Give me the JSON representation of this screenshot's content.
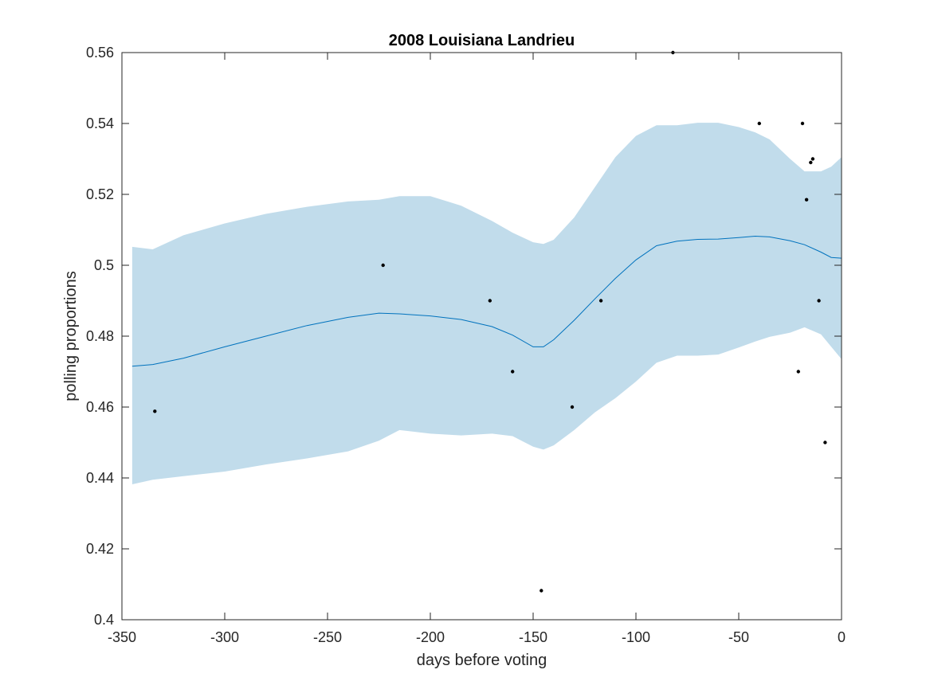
{
  "chart_data": {
    "type": "line",
    "title": "2008 Louisiana Landrieu",
    "xlabel": "days before voting",
    "ylabel": "polling proportions",
    "xlim": [
      -350,
      0
    ],
    "ylim": [
      0.4,
      0.56
    ],
    "xticks": [
      -350,
      -300,
      -250,
      -200,
      -150,
      -100,
      -50,
      0
    ],
    "xtick_labels": [
      "-350",
      "-300",
      "-250",
      "-200",
      "-150",
      "-100",
      "-50",
      "0"
    ],
    "yticks": [
      0.4,
      0.42,
      0.44,
      0.46,
      0.48,
      0.5,
      0.52,
      0.54,
      0.56
    ],
    "ytick_labels": [
      "0.4",
      "0.42",
      "0.44",
      "0.46",
      "0.48",
      "0.5",
      "0.52",
      "0.54",
      "0.56"
    ],
    "grid": false,
    "colors": {
      "mean_line": "#0072BD",
      "band_fill": "#C1DCEB",
      "points": "#000000",
      "axes": "#262626"
    },
    "mean": {
      "x": [
        -345,
        -335,
        -320,
        -300,
        -280,
        -260,
        -240,
        -225,
        -215,
        -200,
        -185,
        -170,
        -160,
        -150,
        -145,
        -140,
        -130,
        -120,
        -110,
        -100,
        -90,
        -80,
        -70,
        -60,
        -50,
        -42,
        -35,
        -25,
        -18,
        -10,
        -5,
        0
      ],
      "y": [
        0.4715,
        0.472,
        0.4738,
        0.477,
        0.48,
        0.483,
        0.4853,
        0.4865,
        0.4863,
        0.4857,
        0.4847,
        0.4827,
        0.4803,
        0.477,
        0.477,
        0.479,
        0.4845,
        0.4905,
        0.4963,
        0.5015,
        0.5055,
        0.5068,
        0.5073,
        0.5074,
        0.5078,
        0.5082,
        0.508,
        0.5069,
        0.5058,
        0.5037,
        0.5022,
        0.502
      ]
    },
    "band": {
      "x": [
        -345,
        -335,
        -320,
        -300,
        -280,
        -260,
        -240,
        -225,
        -215,
        -200,
        -185,
        -170,
        -160,
        -150,
        -145,
        -140,
        -130,
        -120,
        -110,
        -100,
        -90,
        -80,
        -70,
        -60,
        -50,
        -42,
        -35,
        -25,
        -18,
        -10,
        -5,
        0
      ],
      "upper": [
        0.5052,
        0.5045,
        0.5085,
        0.5118,
        0.5145,
        0.5165,
        0.518,
        0.5185,
        0.5195,
        0.5195,
        0.5168,
        0.5125,
        0.5092,
        0.5065,
        0.506,
        0.5072,
        0.5135,
        0.522,
        0.5305,
        0.5365,
        0.5395,
        0.5395,
        0.5402,
        0.5402,
        0.539,
        0.5375,
        0.5355,
        0.53,
        0.5265,
        0.5265,
        0.5278,
        0.5305
      ],
      "lower": [
        0.4382,
        0.4395,
        0.4405,
        0.4418,
        0.4438,
        0.4455,
        0.4475,
        0.4505,
        0.4535,
        0.4525,
        0.452,
        0.4525,
        0.4518,
        0.4488,
        0.448,
        0.4492,
        0.4535,
        0.4585,
        0.4625,
        0.4672,
        0.4725,
        0.4745,
        0.4745,
        0.4748,
        0.4768,
        0.4785,
        0.4798,
        0.481,
        0.4825,
        0.4805,
        0.477,
        0.4735
      ]
    },
    "points": {
      "x": [
        -334,
        -223,
        -171,
        -160,
        -146,
        -131,
        -117,
        -82,
        -40,
        -21,
        -19,
        -17,
        -15,
        -14,
        -11,
        -8
      ],
      "y": [
        0.4588,
        0.5,
        0.49,
        0.47,
        0.4082,
        0.46,
        0.49,
        0.56,
        0.54,
        0.47,
        0.54,
        0.5185,
        0.529,
        0.53,
        0.49,
        0.45
      ]
    }
  }
}
